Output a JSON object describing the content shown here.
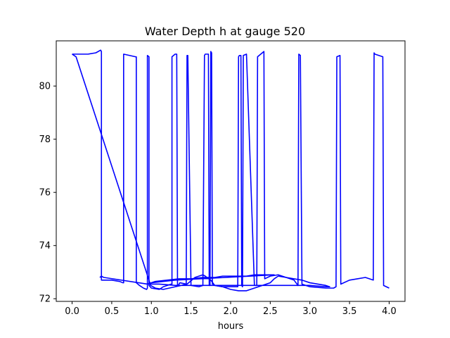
{
  "chart_data": {
    "type": "line",
    "title": "Water Depth h at gauge 520",
    "xlabel": "hours",
    "ylabel": "",
    "xlim": [
      -0.2,
      4.2
    ],
    "ylim": [
      71.9,
      81.7
    ],
    "xticks": [
      0.0,
      0.5,
      1.0,
      1.5,
      2.0,
      2.5,
      3.0,
      3.5,
      4.0
    ],
    "xtick_labels": [
      "0.0",
      "0.5",
      "1.0",
      "1.5",
      "2.0",
      "2.5",
      "3.0",
      "3.5",
      "4.0"
    ],
    "yticks": [
      72,
      74,
      76,
      78,
      80
    ],
    "ytick_labels": [
      "72",
      "74",
      "76",
      "78",
      "80"
    ],
    "grid": false,
    "series": [
      {
        "color": "#0000ff",
        "x": [
          0.0,
          0.2,
          0.3,
          0.36,
          0.37,
          0.37,
          0.4,
          0.5,
          0.6,
          0.64,
          0.65,
          0.65,
          0.8,
          0.81,
          0.81,
          0.85,
          0.9,
          0.94,
          0.95,
          0.95,
          0.97,
          0.97,
          1.0,
          1.1,
          1.15,
          1.2,
          1.25,
          1.26,
          1.26,
          1.3,
          1.32,
          1.33,
          1.34,
          1.36,
          1.44,
          1.45,
          1.46,
          1.5,
          1.6,
          1.65,
          1.67,
          1.68,
          1.72,
          1.73,
          1.74,
          1.75,
          1.76,
          1.77,
          1.78,
          1.8,
          1.9,
          2.0,
          2.05,
          2.09,
          2.1,
          2.11,
          2.13,
          2.14,
          2.15,
          2.16,
          2.2,
          2.3,
          2.33,
          2.34,
          2.42,
          2.43,
          2.5,
          2.6,
          2.8,
          2.85,
          2.86,
          2.88,
          2.9,
          3.0,
          3.2,
          3.3,
          3.33,
          3.34,
          3.38,
          3.39,
          3.5,
          3.6,
          3.7,
          3.75,
          3.8,
          3.81,
          3.82,
          3.92,
          3.93,
          4.0
        ],
        "y": [
          81.2,
          81.2,
          81.25,
          81.35,
          81.3,
          72.7,
          72.7,
          72.7,
          72.65,
          72.6,
          72.6,
          81.2,
          81.1,
          81.1,
          72.6,
          72.5,
          72.4,
          72.35,
          72.4,
          81.15,
          81.1,
          72.5,
          72.4,
          72.35,
          72.45,
          72.5,
          72.55,
          72.55,
          81.1,
          81.2,
          81.2,
          72.5,
          72.5,
          72.6,
          72.55,
          81.15,
          81.15,
          72.5,
          72.45,
          72.5,
          81.15,
          81.2,
          81.2,
          72.5,
          72.5,
          81.3,
          81.25,
          72.55,
          72.55,
          72.5,
          72.45,
          72.45,
          72.45,
          72.45,
          81.1,
          81.15,
          81.15,
          72.5,
          72.45,
          81.15,
          81.2,
          72.5,
          72.5,
          81.1,
          81.3,
          72.75,
          72.85,
          72.9,
          72.7,
          72.5,
          81.2,
          81.15,
          72.55,
          72.45,
          72.4,
          72.4,
          72.45,
          81.1,
          81.15,
          72.55,
          72.7,
          72.75,
          72.8,
          72.75,
          72.7,
          81.25,
          81.2,
          81.1,
          72.5,
          72.4
        ]
      },
      {
        "color": "#0000ff",
        "x": [
          0.0,
          0.05,
          0.97,
          0.99,
          1.05,
          1.15,
          1.3,
          1.45,
          1.55,
          1.6,
          1.65,
          1.68,
          1.7,
          1.75,
          1.8,
          1.9,
          2.0,
          2.1,
          2.2,
          2.25,
          2.5,
          2.55,
          2.6,
          2.7,
          2.8,
          2.9,
          3.0,
          3.1,
          3.2,
          3.25,
          3.2,
          3.0,
          2.8,
          2.5,
          2.0,
          1.6,
          1.3,
          1.1,
          0.97,
          1.0,
          1.05,
          1.2,
          1.35,
          1.5,
          1.65,
          1.8,
          1.9,
          2.0,
          2.1,
          2.2,
          2.3,
          2.4,
          2.55,
          1.3,
          1.0,
          0.95,
          0.4,
          0.37,
          0.35
        ],
        "y": [
          81.2,
          81.1,
          72.7,
          72.5,
          72.4,
          72.35,
          72.45,
          72.55,
          72.8,
          72.85,
          72.9,
          72.85,
          72.8,
          72.7,
          72.5,
          72.45,
          72.35,
          72.3,
          72.3,
          72.35,
          72.6,
          72.75,
          72.85,
          72.8,
          72.75,
          72.7,
          72.6,
          72.55,
          72.5,
          72.45,
          72.45,
          72.5,
          72.5,
          72.5,
          72.5,
          72.5,
          72.5,
          72.55,
          72.55,
          72.6,
          72.65,
          72.7,
          72.75,
          72.75,
          72.8,
          72.8,
          72.85,
          72.85,
          72.85,
          72.85,
          72.9,
          72.9,
          72.9,
          72.7,
          72.6,
          72.55,
          72.8,
          72.85,
          72.8
        ]
      }
    ]
  }
}
